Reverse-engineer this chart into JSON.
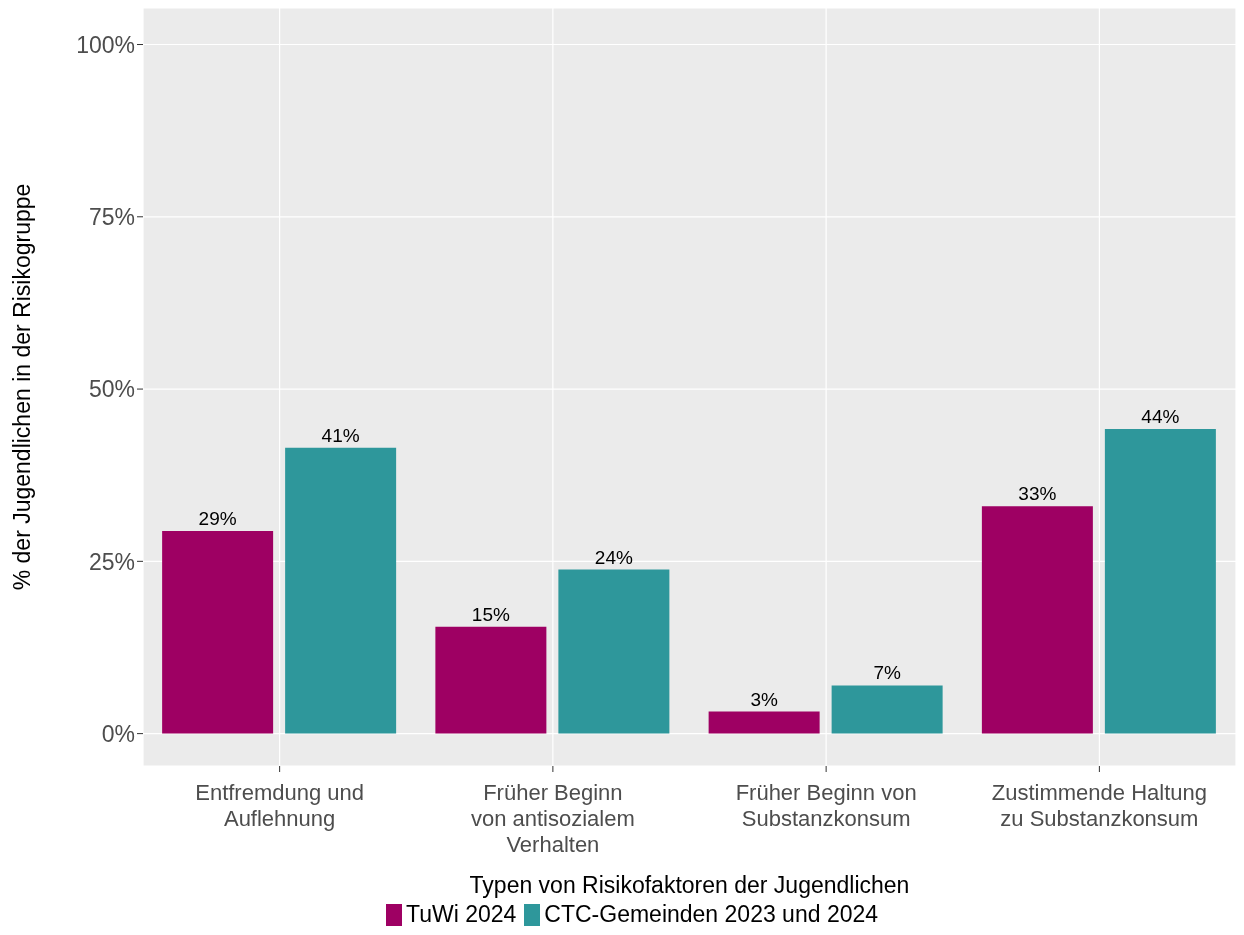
{
  "chart_data": {
    "type": "bar",
    "xlabel": "Typen von Risikofaktoren der Jugendlichen",
    "ylabel": "% der Jugendlichen in der Risikogruppe",
    "categories": [
      "Entfremdung und\nAuflehnung",
      "Früher Beginn\nvon antisozialem\nVerhalten",
      "Früher Beginn von\nSubstanzkonsum",
      "Zustimmende Haltung\nzu Substanzkonsum"
    ],
    "series": [
      {
        "name": "TuWi 2024",
        "color": "#9e0063",
        "values": [
          29.4,
          15.5,
          3.2,
          33.0
        ],
        "value_labels": [
          "29%",
          "15%",
          "3%",
          "33%"
        ]
      },
      {
        "name": "CTC-Gemeinden 2023 und 2024",
        "color": "#2e979b",
        "values": [
          41.5,
          23.8,
          7.0,
          44.2
        ],
        "value_labels": [
          "41%",
          "24%",
          "7%",
          "44%"
        ]
      }
    ],
    "ylim": [
      -4.7,
      105.3
    ],
    "yticks": [
      {
        "value": 0,
        "label": "0%"
      },
      {
        "value": 25,
        "label": "25%"
      },
      {
        "value": 50,
        "label": "50%"
      },
      {
        "value": 75,
        "label": "75%"
      },
      {
        "value": 100,
        "label": "100%"
      }
    ],
    "grid": true,
    "legend": "bottom"
  }
}
